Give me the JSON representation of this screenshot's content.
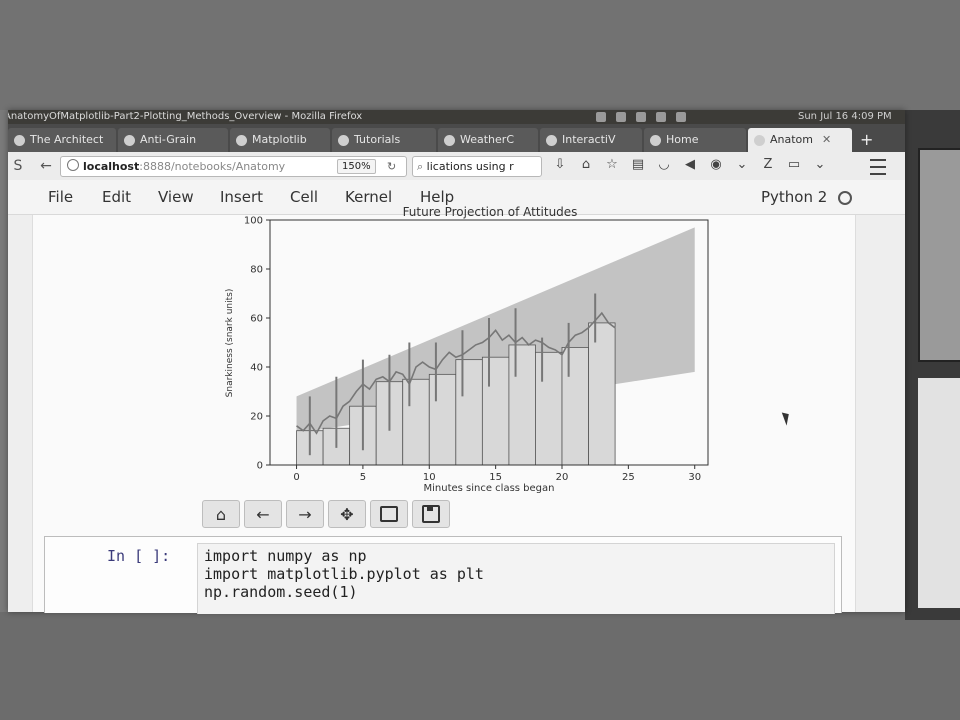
{
  "window": {
    "title": "AnatomyOfMatplotlib-Part2-Plotting_Methods_Overview - Mozilla Firefox",
    "clock": "Sun Jul 16 4:09 PM"
  },
  "tabs": [
    {
      "label": "The Architect"
    },
    {
      "label": "Anti-Grain"
    },
    {
      "label": "Matplotlib"
    },
    {
      "label": "Tutorials"
    },
    {
      "label": "WeatherC"
    },
    {
      "label": "InteractiV"
    },
    {
      "label": "Home"
    },
    {
      "label": "Anatom",
      "active": true
    }
  ],
  "navbar": {
    "url_host": "localhost",
    "url_path": ":8888/notebooks/Anatomy",
    "zoom": "150%",
    "search_text": "lications using r"
  },
  "jupyter_menu": {
    "items": [
      "File",
      "Edit",
      "View",
      "Insert",
      "Cell",
      "Kernel",
      "Help"
    ],
    "kernel": "Python 2"
  },
  "chart_data": {
    "type": "bar",
    "title": "Future Projection of Attitudes",
    "xlabel": "Minutes since class began",
    "ylabel": "Snarkiness (snark units)",
    "xlim": [
      -2,
      31
    ],
    "ylim": [
      0,
      100
    ],
    "xticks": [
      0,
      5,
      10,
      15,
      20,
      25,
      30
    ],
    "yticks": [
      0,
      20,
      40,
      60,
      80,
      100
    ],
    "bars": {
      "x": [
        0,
        2,
        4,
        6,
        8,
        10,
        12,
        14,
        16,
        18,
        20,
        22
      ],
      "heights": [
        14,
        15,
        24,
        34,
        35,
        37,
        43,
        44,
        49,
        46,
        48,
        58
      ],
      "width": 2,
      "color": "#d8d8d8",
      "edgecolor": "#555555"
    },
    "error_bars": {
      "x": [
        1,
        3,
        5,
        7,
        8.5,
        10.5,
        12.5,
        14.5,
        16.5,
        18.5,
        20.5,
        22.5
      ],
      "low": [
        4,
        7,
        6,
        14,
        24,
        26,
        28,
        32,
        36,
        34,
        36,
        50
      ],
      "high": [
        28,
        36,
        43,
        45,
        50,
        50,
        55,
        60,
        64,
        52,
        58,
        70
      ]
    },
    "line": {
      "x": [
        0,
        0.5,
        1,
        1.5,
        2,
        2.5,
        3,
        3.5,
        4,
        4.5,
        5,
        5.5,
        6,
        6.5,
        7,
        7.5,
        8,
        8.5,
        9,
        9.5,
        10,
        10.5,
        11,
        11.5,
        12,
        12.5,
        13,
        13.5,
        14,
        14.5,
        15,
        15.5,
        16,
        16.5,
        17,
        17.5,
        18,
        18.5,
        19,
        19.5,
        20,
        20.5,
        21,
        21.5,
        22,
        22.5,
        23,
        23.5,
        24
      ],
      "y": [
        16,
        14,
        17,
        13,
        18,
        20,
        19,
        24,
        26,
        30,
        33,
        31,
        35,
        36,
        34,
        38,
        37,
        33,
        40,
        42,
        40,
        39,
        43,
        46,
        44,
        45,
        47,
        49,
        50,
        52,
        55,
        51,
        53,
        50,
        52,
        49,
        51,
        50,
        48,
        47,
        45,
        50,
        53,
        54,
        56,
        59,
        62,
        58,
        56
      ]
    },
    "projection_band": {
      "x": [
        0,
        30
      ],
      "upper": [
        28,
        97
      ],
      "lower": [
        13,
        38
      ],
      "color": "#b8b8b8"
    },
    "grid": false
  },
  "mpl_toolbar": {
    "icons": [
      "home-icon",
      "back-icon",
      "forward-icon",
      "pan-icon",
      "zoom-rect-icon",
      "save-icon"
    ]
  },
  "code_cell": {
    "prompt": "In [ ]:",
    "lines": [
      "import numpy as np",
      "import matplotlib.pyplot as plt",
      "np.random.seed(1)"
    ]
  }
}
